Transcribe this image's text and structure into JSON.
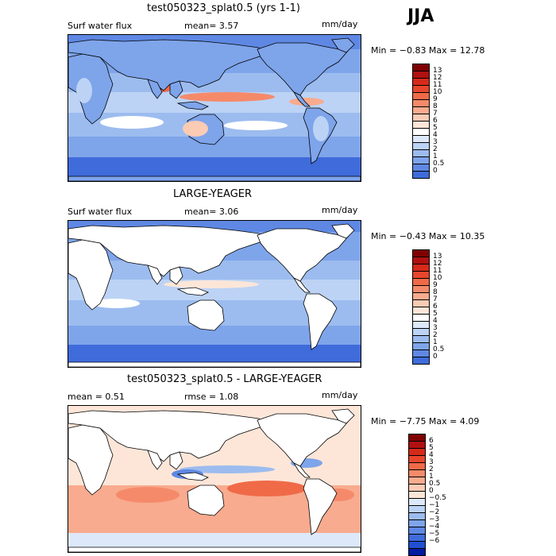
{
  "season": "JJA",
  "colors": {
    "pos": [
      "#7f0000",
      "#b01010",
      "#d62a1a",
      "#e8462c",
      "#f06a48",
      "#f58a6a",
      "#f8ab8e",
      "#fbcbb4",
      "#fde6d8",
      "#ffffff",
      "#dde8fa",
      "#bcd3f5",
      "#9cbcef",
      "#7ea4ea",
      "#5e88e3",
      "#3f6bdb",
      "#2050d2",
      "#0a36c4",
      "#001aa0"
    ],
    "diff": [
      "#7f0000",
      "#b01010",
      "#d62a1a",
      "#e8462c",
      "#f06a48",
      "#f58a6a",
      "#f8ab8e",
      "#fbcbb4",
      "#fde6d8",
      "#dde8fa",
      "#bcd3f5",
      "#9cbcef",
      "#7ea4ea",
      "#5e88e3",
      "#3f6bdb",
      "#2050d2",
      "#001aa0"
    ]
  },
  "panels": [
    {
      "title": "test050323_splat0.5 (yrs 1-1)",
      "left": "Surf water flux",
      "middle": "mean=    3.57",
      "units": "mm/day",
      "minmax": "Min =   −0.83 Max =   12.78",
      "legend_labels": [
        "13",
        "12",
        "11",
        "10",
        "9",
        "8",
        "7",
        "6",
        "5",
        "4",
        "3",
        "2",
        "1",
        "0.5",
        "0"
      ],
      "ocean_only": false
    },
    {
      "title": "LARGE-YEAGER",
      "left": "Surf water flux",
      "middle": "mean=    3.06",
      "units": "mm/day",
      "minmax": "Min =   −0.43 Max =   10.35",
      "legend_labels": [
        "13",
        "12",
        "11",
        "10",
        "9",
        "8",
        "7",
        "6",
        "5",
        "4",
        "3",
        "2",
        "1",
        "0.5",
        "0"
      ],
      "ocean_only": true
    },
    {
      "title": "test050323_splat0.5 - LARGE-YEAGER",
      "left": "mean =    0.51",
      "middle": "rmse =    1.08",
      "units": "mm/day",
      "minmax": "Min =   −7.75 Max =    4.09",
      "legend_labels": [
        "6",
        "5",
        "4",
        "3",
        "2",
        "1",
        "0.5",
        "0",
        "−0.5",
        "−1",
        "−2",
        "−3",
        "−4",
        "−5",
        "−6"
      ],
      "ocean_only": true
    }
  ]
}
